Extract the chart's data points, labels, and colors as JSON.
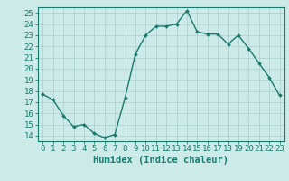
{
  "x": [
    0,
    1,
    2,
    3,
    4,
    5,
    6,
    7,
    8,
    9,
    10,
    11,
    12,
    13,
    14,
    15,
    16,
    17,
    18,
    19,
    20,
    21,
    22,
    23
  ],
  "y": [
    17.7,
    17.2,
    15.8,
    14.8,
    15.0,
    14.2,
    13.8,
    14.1,
    17.4,
    21.3,
    23.0,
    23.8,
    23.8,
    24.0,
    25.2,
    23.3,
    23.1,
    23.1,
    22.2,
    23.0,
    21.8,
    20.5,
    19.2,
    17.6
  ],
  "line_color": "#1a7a6e",
  "marker": "D",
  "marker_size": 2.0,
  "line_width": 1.0,
  "xlabel": "Humidex (Indice chaleur)",
  "xlim": [
    -0.5,
    23.5
  ],
  "ylim": [
    13.5,
    25.5
  ],
  "yticks": [
    14,
    15,
    16,
    17,
    18,
    19,
    20,
    21,
    22,
    23,
    24,
    25
  ],
  "xticks": [
    0,
    1,
    2,
    3,
    4,
    5,
    6,
    7,
    8,
    9,
    10,
    11,
    12,
    13,
    14,
    15,
    16,
    17,
    18,
    19,
    20,
    21,
    22,
    23
  ],
  "bg_color": "#cceae7",
  "grid_color": "#aacfcc",
  "tick_color": "#1a7a6e",
  "label_color": "#1a7a6e",
  "font_size_axis": 6.5,
  "font_size_label": 7.5
}
